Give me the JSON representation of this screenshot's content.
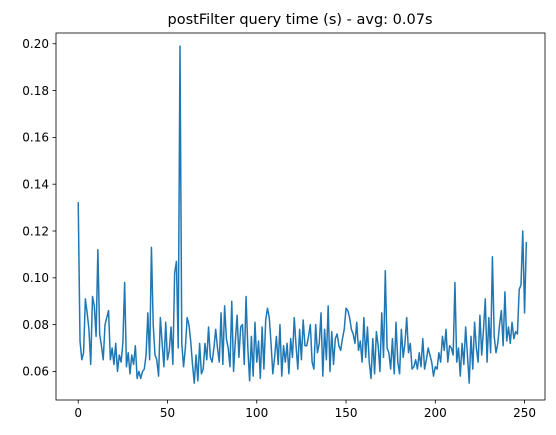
{
  "chart_data": {
    "type": "line",
    "title": "postFilter query time (s) - avg: 0.07s",
    "xlabel": "",
    "ylabel": "",
    "xlim": [
      -12.45,
      261.45
    ],
    "ylim": [
      0.0478,
      0.2046
    ],
    "xticks": [
      0,
      50,
      100,
      150,
      200,
      250
    ],
    "yticks": [
      0.06,
      0.08,
      0.1,
      0.12,
      0.14,
      0.16,
      0.18,
      0.2
    ],
    "ytick_labels": [
      "0.06",
      "0.08",
      "0.10",
      "0.12",
      "0.14",
      "0.16",
      "0.18",
      "0.20"
    ],
    "grid": false,
    "color": "#1f77b4",
    "series": [
      {
        "values": [
          0.132,
          0.073,
          0.065,
          0.068,
          0.091,
          0.085,
          0.078,
          0.063,
          0.092,
          0.088,
          0.075,
          0.112,
          0.076,
          0.071,
          0.065,
          0.08,
          0.083,
          0.086,
          0.065,
          0.07,
          0.063,
          0.072,
          0.06,
          0.067,
          0.064,
          0.072,
          0.098,
          0.062,
          0.068,
          0.059,
          0.067,
          0.063,
          0.071,
          0.057,
          0.06,
          0.057,
          0.06,
          0.061,
          0.067,
          0.085,
          0.065,
          0.113,
          0.08,
          0.067,
          0.065,
          0.058,
          0.083,
          0.072,
          0.062,
          0.081,
          0.065,
          0.069,
          0.079,
          0.063,
          0.102,
          0.107,
          0.07,
          0.199,
          0.072,
          0.062,
          0.07,
          0.083,
          0.08,
          0.073,
          0.063,
          0.055,
          0.067,
          0.056,
          0.072,
          0.059,
          0.061,
          0.072,
          0.065,
          0.079,
          0.066,
          0.064,
          0.07,
          0.078,
          0.07,
          0.064,
          0.085,
          0.063,
          0.088,
          0.074,
          0.07,
          0.062,
          0.09,
          0.06,
          0.073,
          0.084,
          0.066,
          0.079,
          0.08,
          0.063,
          0.092,
          0.07,
          0.056,
          0.075,
          0.058,
          0.081,
          0.064,
          0.073,
          0.057,
          0.079,
          0.061,
          0.082,
          0.087,
          0.083,
          0.072,
          0.059,
          0.066,
          0.075,
          0.063,
          0.08,
          0.058,
          0.071,
          0.064,
          0.072,
          0.059,
          0.074,
          0.066,
          0.083,
          0.071,
          0.061,
          0.078,
          0.065,
          0.082,
          0.071,
          0.071,
          0.075,
          0.08,
          0.064,
          0.061,
          0.08,
          0.068,
          0.072,
          0.085,
          0.058,
          0.078,
          0.065,
          0.088,
          0.06,
          0.077,
          0.063,
          0.074,
          0.076,
          0.071,
          0.069,
          0.074,
          0.078,
          0.087,
          0.086,
          0.083,
          0.078,
          0.076,
          0.072,
          0.081,
          0.069,
          0.073,
          0.064,
          0.083,
          0.066,
          0.079,
          0.064,
          0.057,
          0.074,
          0.059,
          0.077,
          0.071,
          0.06,
          0.085,
          0.066,
          0.103,
          0.07,
          0.068,
          0.061,
          0.074,
          0.059,
          0.081,
          0.064,
          0.059,
          0.078,
          0.066,
          0.072,
          0.083,
          0.068,
          0.072,
          0.061,
          0.062,
          0.065,
          0.061,
          0.068,
          0.062,
          0.074,
          0.061,
          0.065,
          0.07,
          0.067,
          0.064,
          0.058,
          0.062,
          0.061,
          0.068,
          0.064,
          0.075,
          0.069,
          0.078,
          0.064,
          0.071,
          0.07,
          0.067,
          0.098,
          0.064,
          0.07,
          0.058,
          0.072,
          0.063,
          0.079,
          0.067,
          0.055,
          0.075,
          0.061,
          0.081,
          0.07,
          0.064,
          0.084,
          0.067,
          0.078,
          0.091,
          0.064,
          0.083,
          0.068,
          0.109,
          0.075,
          0.068,
          0.072,
          0.08,
          0.086,
          0.071,
          0.094,
          0.073,
          0.079,
          0.072,
          0.081,
          0.074,
          0.077,
          0.076,
          0.095,
          0.097,
          0.12,
          0.085,
          0.115
        ]
      }
    ]
  }
}
